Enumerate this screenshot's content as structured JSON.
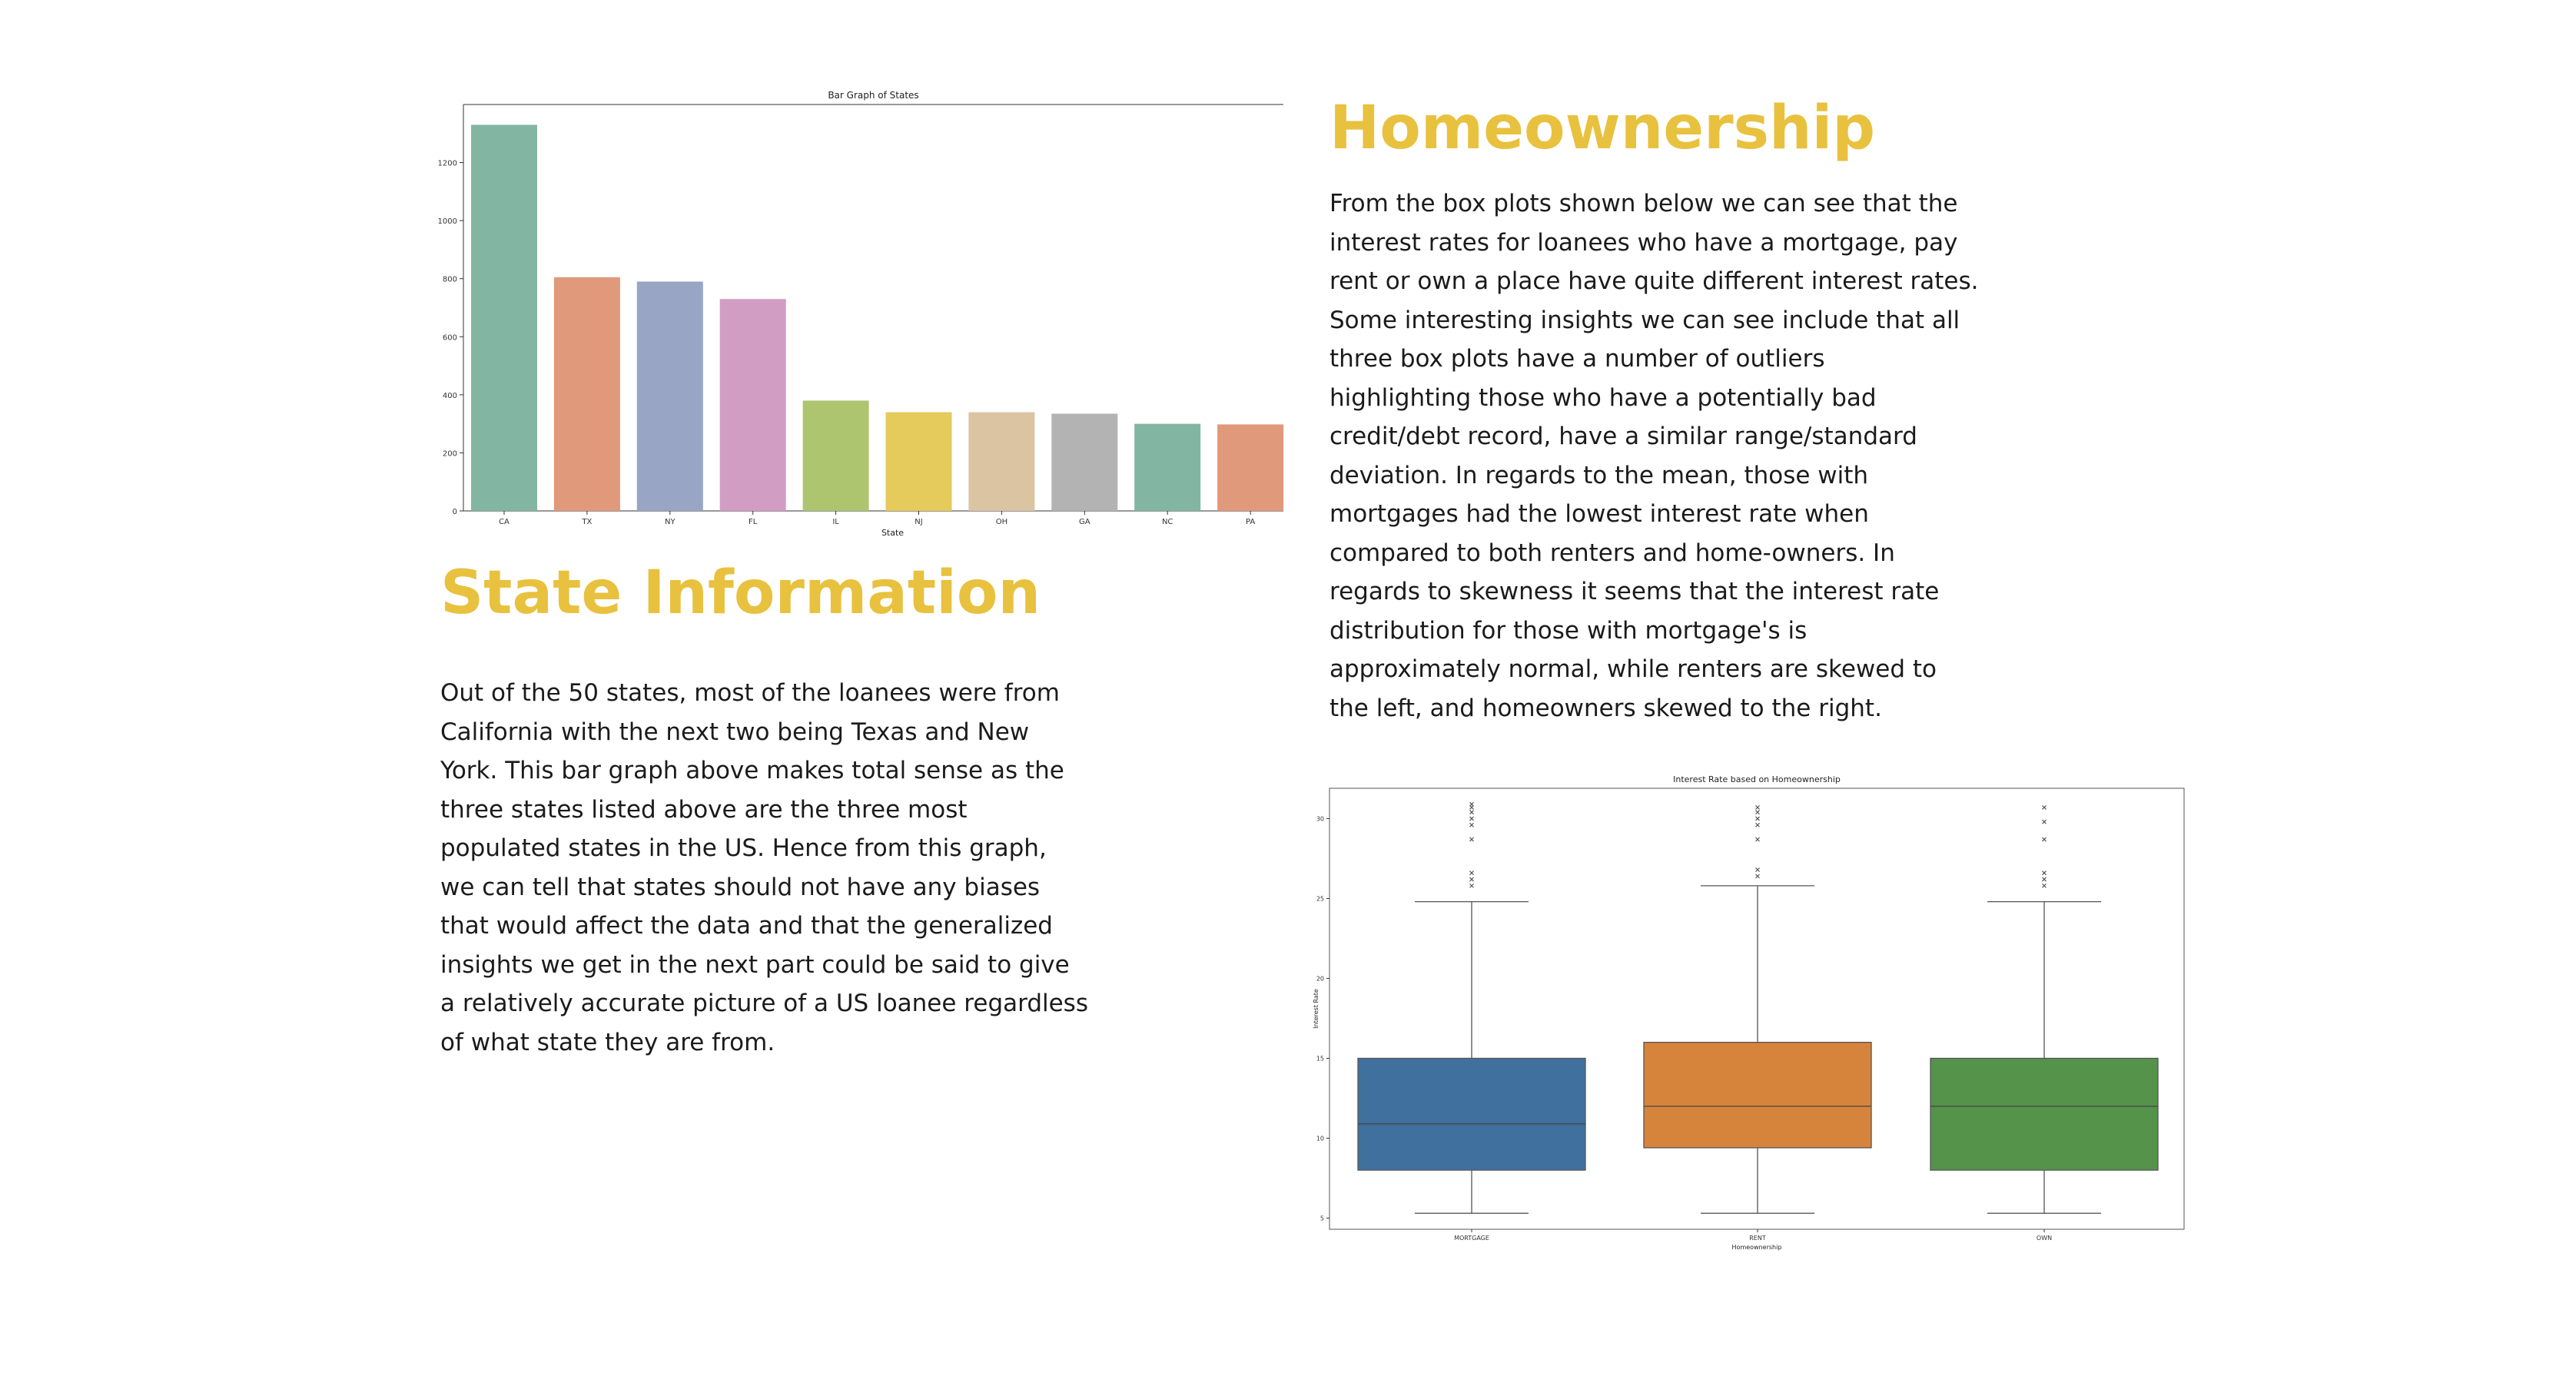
{
  "state_section": {
    "heading": "State Information",
    "body_lines": [
      "Out of the 50 states, most of the loanees were from",
      "California with the next two being Texas and New",
      "York. This bar graph above makes total sense as the",
      "three states listed above are the three most",
      "populated states in the US. Hence from this graph,",
      "we can tell that states should not have any biases",
      "that would affect the data and that the generalized",
      "insights we get in the next part could be said to give",
      "a relatively accurate picture of a US loanee regardless",
      "of what state they are from."
    ]
  },
  "home_section": {
    "heading": "Homeownership",
    "body_lines": [
      "From the box plots shown below we can see that the",
      "interest rates for loanees who have a mortgage, pay",
      "rent or own a place have quite different interest rates.",
      "Some interesting insights we can see include that all",
      "three box plots have a number of outliers",
      "highlighting those who have a potentially bad",
      "credit/debt record,  have a similar range/standard",
      "deviation. In regards to the mean, those with",
      "mortgages had the lowest interest rate when",
      "compared to both renters and home-owners. In",
      "regards to skewness it seems that the interest rate",
      "distribution for those with mortgage's is",
      "approximately normal, while renters are skewed to",
      "the left, and homeowners skewed to the right."
    ]
  },
  "colors": {
    "heading": "#E8C13E",
    "bar_palette": [
      "#82B6A3",
      "#E0997B",
      "#98A5C4",
      "#D29DC3",
      "#ADC56F",
      "#E5CA5C",
      "#DAC4A2",
      "#B3B3B3",
      "#82B6A3",
      "#E0997B"
    ],
    "box_palette": [
      "#40719E",
      "#D6843C",
      "#55924A"
    ]
  },
  "chart_data": [
    {
      "type": "bar",
      "title": "Bar Graph of States",
      "xlabel": "State",
      "ylabel": "",
      "categories": [
        "CA",
        "TX",
        "NY",
        "FL",
        "IL",
        "NJ",
        "OH",
        "GA",
        "NC",
        "PA"
      ],
      "values": [
        1330,
        805,
        790,
        730,
        380,
        340,
        340,
        335,
        300,
        298
      ],
      "ylim": [
        0,
        1400
      ],
      "yticks": [
        0,
        200,
        400,
        600,
        800,
        1000,
        1200
      ],
      "grid": false
    },
    {
      "type": "box",
      "title": "Interest Rate based on Homeownership",
      "xlabel": "Homeownership",
      "ylabel": "Interest Rate",
      "categories": [
        "MORTGAGE",
        "RENT",
        "OWN"
      ],
      "ylim": [
        4.3,
        31.9
      ],
      "yticks": [
        5,
        10,
        15,
        20,
        25,
        30
      ],
      "boxes": [
        {
          "whisker_low": 5.3,
          "q1": 8.0,
          "median": 10.9,
          "q3": 15.0,
          "whisker_high": 24.8,
          "outliers": [
            25.8,
            26.2,
            26.6,
            28.7,
            29.6,
            30.0,
            30.4,
            30.7,
            30.9
          ]
        },
        {
          "whisker_low": 5.3,
          "q1": 9.4,
          "median": 12.0,
          "q3": 16.0,
          "whisker_high": 25.8,
          "outliers": [
            26.4,
            26.8,
            28.7,
            29.6,
            30.0,
            30.4,
            30.7
          ]
        },
        {
          "whisker_low": 5.3,
          "q1": 8.0,
          "median": 12.0,
          "q3": 15.0,
          "whisker_high": 24.8,
          "outliers": [
            25.8,
            26.2,
            26.6,
            28.7,
            29.8,
            30.7
          ]
        }
      ],
      "grid": false
    }
  ]
}
